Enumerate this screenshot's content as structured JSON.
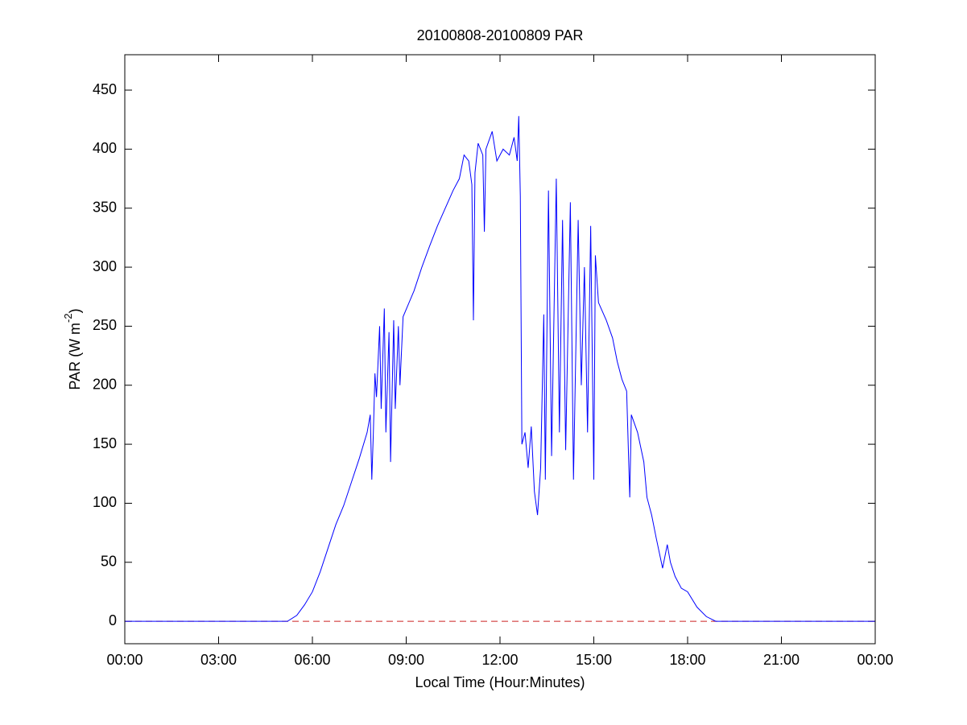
{
  "chart_data": {
    "type": "line",
    "title": "20100808-20100809 PAR",
    "xlabel": "Local Time (Hour:Minutes)",
    "ylabel": [
      "PAR (W m",
      "-2",
      ")"
    ],
    "xlim": [
      0,
      24
    ],
    "ylim": [
      -19,
      480
    ],
    "xticks": [
      {
        "value": 0,
        "label": "00:00"
      },
      {
        "value": 3,
        "label": "03:00"
      },
      {
        "value": 6,
        "label": "06:00"
      },
      {
        "value": 9,
        "label": "09:00"
      },
      {
        "value": 12,
        "label": "12:00"
      },
      {
        "value": 15,
        "label": "15:00"
      },
      {
        "value": 18,
        "label": "18:00"
      },
      {
        "value": 21,
        "label": "21:00"
      },
      {
        "value": 24,
        "label": "00:00"
      }
    ],
    "yticks": [
      0,
      50,
      100,
      150,
      200,
      250,
      300,
      350,
      400,
      450
    ],
    "reference_line": {
      "y": 0,
      "color": "#cc2222",
      "dashed": true
    },
    "series": [
      {
        "color": "#0000ff",
        "x": [
          0,
          5.2,
          5.5,
          5.75,
          6.0,
          6.25,
          6.5,
          6.75,
          7.0,
          7.25,
          7.5,
          7.75,
          7.85,
          7.9,
          7.95,
          8.0,
          8.05,
          8.15,
          8.2,
          8.3,
          8.35,
          8.45,
          8.5,
          8.6,
          8.65,
          8.75,
          8.8,
          8.9,
          9.25,
          9.5,
          9.75,
          10.0,
          10.25,
          10.5,
          10.7,
          10.85,
          11.0,
          11.1,
          11.15,
          11.2,
          11.3,
          11.45,
          11.5,
          11.55,
          11.75,
          11.9,
          12.1,
          12.3,
          12.45,
          12.55,
          12.6,
          12.65,
          12.7,
          12.8,
          12.9,
          13.0,
          13.1,
          13.2,
          13.3,
          13.4,
          13.45,
          13.55,
          13.65,
          13.8,
          13.9,
          14.0,
          14.1,
          14.25,
          14.35,
          14.5,
          14.6,
          14.7,
          14.8,
          14.9,
          15.0,
          15.05,
          15.15,
          15.4,
          15.6,
          15.75,
          15.9,
          16.05,
          16.15,
          16.2,
          16.4,
          16.6,
          16.7,
          16.85,
          17.0,
          17.2,
          17.35,
          17.45,
          17.6,
          17.8,
          18.0,
          18.3,
          18.6,
          18.9,
          24
        ],
        "values": [
          0,
          0,
          5,
          14,
          25,
          42,
          62,
          82,
          98,
          118,
          138,
          160,
          175,
          120,
          160,
          210,
          190,
          250,
          180,
          265,
          160,
          245,
          135,
          255,
          180,
          250,
          200,
          258,
          280,
          300,
          318,
          335,
          350,
          365,
          375,
          395,
          390,
          370,
          255,
          380,
          405,
          395,
          330,
          400,
          415,
          390,
          400,
          395,
          410,
          390,
          428,
          360,
          150,
          160,
          130,
          165,
          110,
          90,
          130,
          260,
          120,
          365,
          140,
          375,
          160,
          340,
          145,
          355,
          120,
          340,
          200,
          300,
          160,
          335,
          120,
          310,
          270,
          255,
          240,
          220,
          205,
          195,
          105,
          175,
          160,
          135,
          105,
          90,
          70,
          45,
          65,
          50,
          38,
          28,
          25,
          12,
          4,
          0,
          0
        ]
      }
    ]
  }
}
